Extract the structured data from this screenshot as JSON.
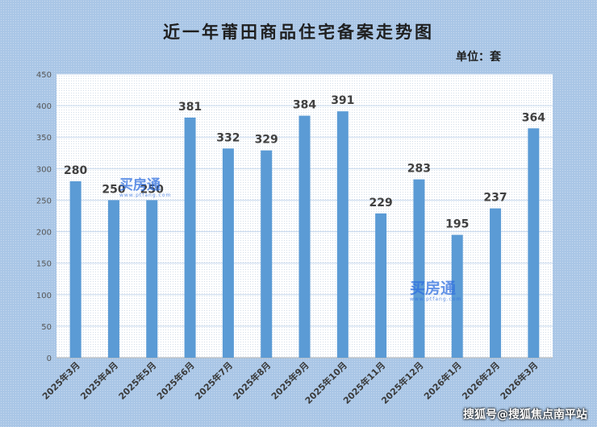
{
  "title": "近一年莆田商品住宅备案走势图",
  "unit_label": "单位：套",
  "watermark": {
    "text": "买房通",
    "sub": "www.ptfang.com"
  },
  "source_credit": "搜狐号@搜狐焦点南平站",
  "colors": {
    "bar": "#5b9bd5",
    "plot_bg": "#ffffff",
    "grid": "#c8d9ee"
  },
  "chart_data": {
    "type": "bar",
    "categories": [
      "2025年3月",
      "2025年4月",
      "2025年5月",
      "2025年6月",
      "2025年7月",
      "2025年8月",
      "2025年9月",
      "2025年10月",
      "2025年11月",
      "2025年12月",
      "2026年1月",
      "2026年2月",
      "2026年3月"
    ],
    "values": [
      280,
      250,
      250,
      381,
      332,
      329,
      384,
      391,
      229,
      283,
      195,
      237,
      364
    ],
    "ylim": [
      0,
      450
    ],
    "yticks": [
      0,
      50,
      100,
      150,
      200,
      250,
      300,
      350,
      400,
      450
    ],
    "grid": true,
    "legend": "none"
  }
}
